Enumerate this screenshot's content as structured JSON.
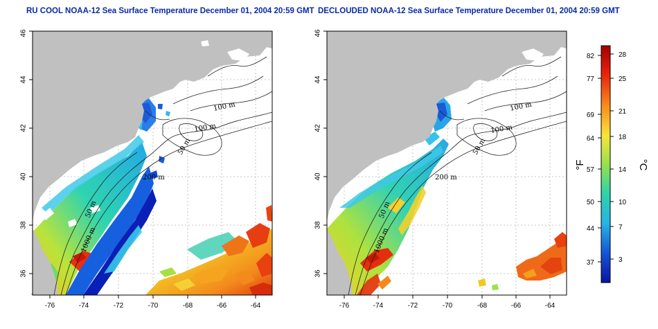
{
  "panels": [
    {
      "id": "left",
      "title": "RU COOL NOAA-12 Sea Surface Temperature December 01, 2004 20:59 GMT",
      "x_ticks": [
        "-76",
        "-74",
        "-72",
        "-70",
        "-68",
        "-66",
        "-64"
      ],
      "y_ticks": [
        "36",
        "38",
        "40",
        "42",
        "44",
        "46"
      ],
      "contour_labels": [
        "100 m",
        "100 m",
        "50 m",
        "200 m",
        "50 m",
        "1000 m"
      ]
    },
    {
      "id": "right",
      "title": "DECLOUDED NOAA-12 Sea Surface Temperature December 01, 2004 20:59 GMT",
      "x_ticks": [
        "-76",
        "-74",
        "-72",
        "-70",
        "-68",
        "-66",
        "-64"
      ],
      "y_ticks": [
        "36",
        "38",
        "40",
        "42",
        "44",
        "46"
      ],
      "contour_labels": [
        "100 m",
        "100 m",
        "50 m",
        "200 m",
        "50 m",
        "1000 m"
      ]
    }
  ],
  "colorbar": {
    "fahrenheit_ticks": [
      "82",
      "77",
      "69",
      "64",
      "57",
      "50",
      "44",
      "37"
    ],
    "celsius_ticks": [
      "28",
      "25",
      "21",
      "18",
      "14",
      "10",
      "7",
      "3"
    ],
    "fahrenheit_unit": "°F",
    "celsius_unit": "°C",
    "colors": [
      "#a50000",
      "#e8230c",
      "#f88a1a",
      "#f7e53b",
      "#9ae04b",
      "#2fd4a8",
      "#26b4e6",
      "#1452d8",
      "#0a14a0"
    ]
  },
  "map_colors": {
    "land": "#c0c0c0",
    "ocean": "#ffffff",
    "grid": "#b5b5b5",
    "contour": "#222222"
  }
}
